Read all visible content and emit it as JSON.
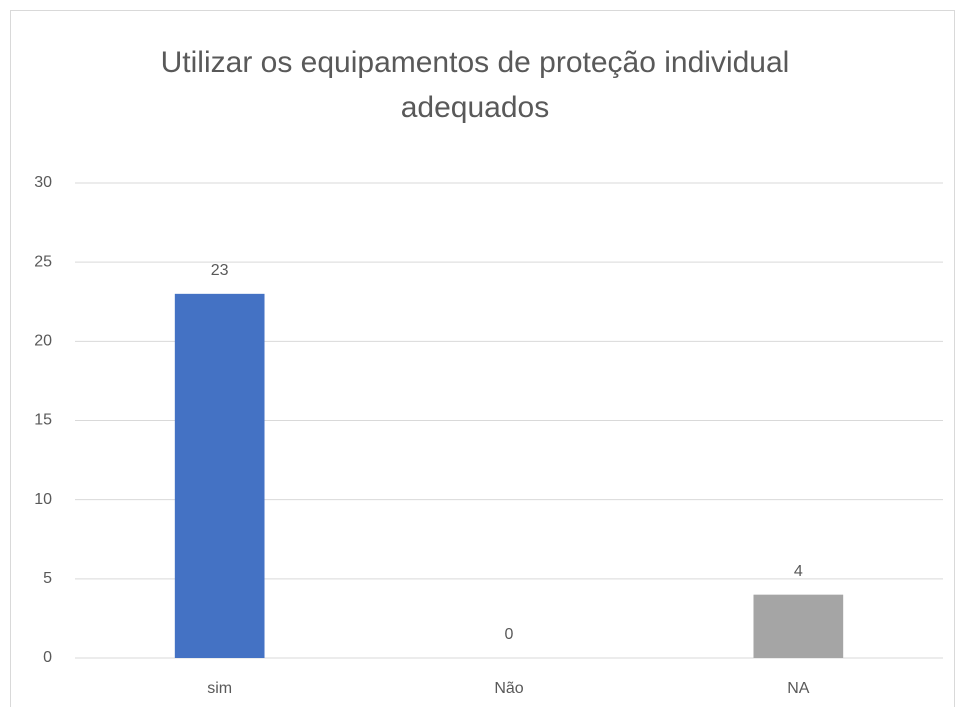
{
  "chart_data": {
    "type": "bar",
    "title": "Utilizar os equipamentos de proteção individual adequados",
    "categories": [
      "sim",
      "Não",
      "NA"
    ],
    "values": [
      23,
      0,
      4
    ],
    "colors": [
      "#4472c4",
      "#ed7d31",
      "#a5a5a5"
    ],
    "ylim": [
      0,
      30
    ],
    "yticks": [
      0,
      5,
      10,
      15,
      20,
      25,
      30
    ],
    "grid": true
  }
}
